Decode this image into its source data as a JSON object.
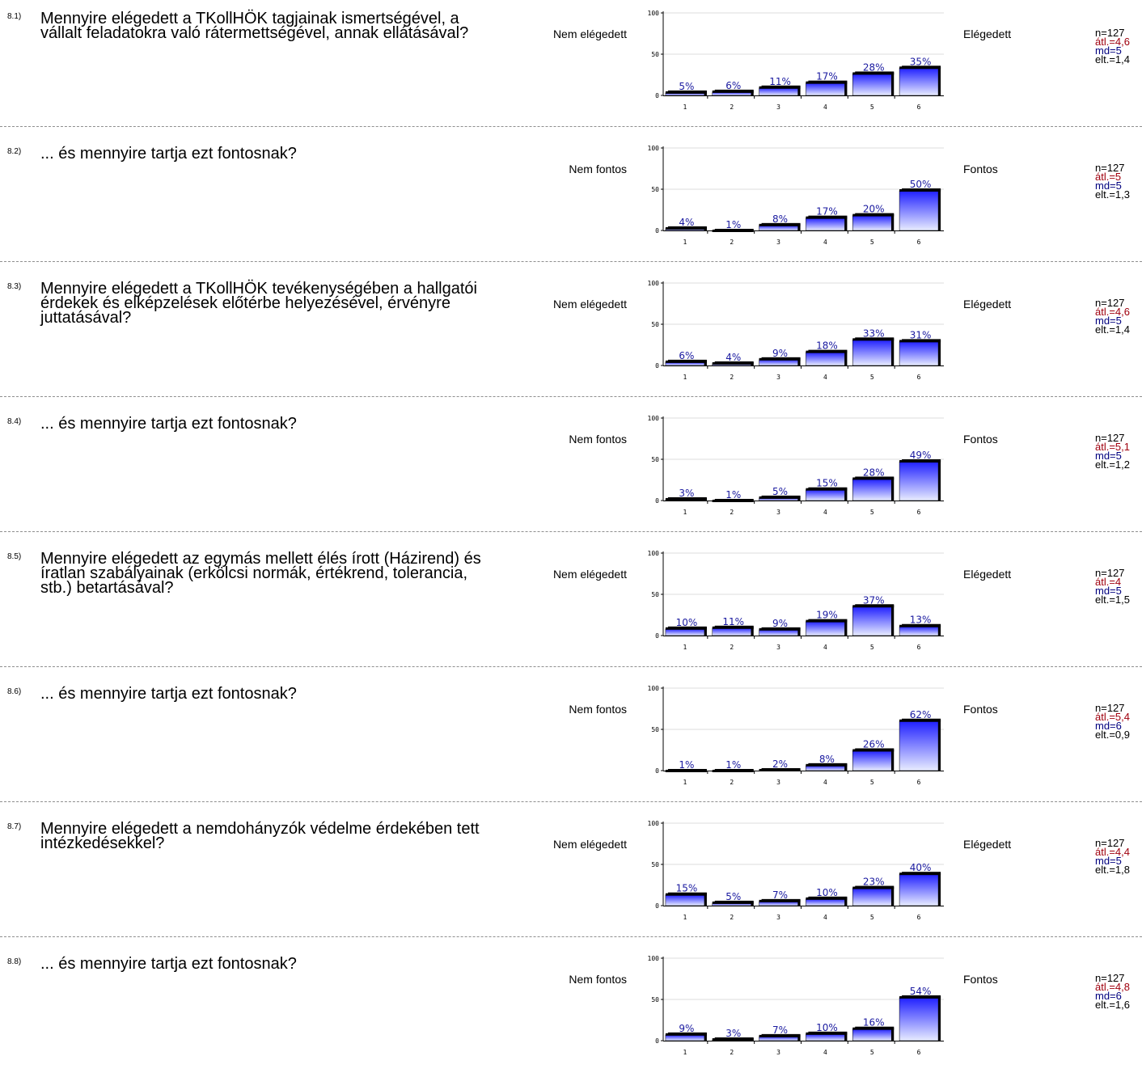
{
  "colors": {
    "bar_top": "#2020ff",
    "bar_bottom": "#e8ecff",
    "label": "#1a1aa0",
    "avg": "#a0000e",
    "md": "#00007f"
  },
  "chart_data": [
    {
      "type": "bar",
      "id": "8.1)",
      "question": "Mennyire elégedett a TKollHÖK tagjainak ismertségével, a vállalt feladatokra való rátermettségével, annak ellátásával?",
      "left_label": "Nem elégedett",
      "right_label": "Elégedett",
      "categories": [
        "1",
        "2",
        "3",
        "4",
        "5",
        "6"
      ],
      "values": [
        5,
        6,
        11,
        17,
        28,
        35
      ],
      "labels": [
        "5%",
        "6%",
        "11%",
        "17%",
        "28%",
        "35%"
      ],
      "yticks": [
        "0",
        "50",
        "100"
      ],
      "ylim": [
        0,
        100
      ],
      "stats": {
        "n": "n=127",
        "avg": "átl.=4,6",
        "md": "md=5",
        "elt": "elt.=1,4"
      }
    },
    {
      "type": "bar",
      "id": "8.2)",
      "question": "... és mennyire tartja ezt fontosnak?",
      "left_label": "Nem fontos",
      "right_label": "Fontos",
      "categories": [
        "1",
        "2",
        "3",
        "4",
        "5",
        "6"
      ],
      "values": [
        4,
        1,
        8,
        17,
        20,
        50
      ],
      "labels": [
        "4%",
        "1%",
        "8%",
        "17%",
        "20%",
        "50%"
      ],
      "yticks": [
        "0",
        "50",
        "100"
      ],
      "ylim": [
        0,
        100
      ],
      "stats": {
        "n": "n=127",
        "avg": "átl.=5",
        "md": "md=5",
        "elt": "elt.=1,3"
      }
    },
    {
      "type": "bar",
      "id": "8.3)",
      "question": "Mennyire elégedett a TKollHÖK tevékenységében a hallgatói érdekek és elképzelések előtérbe helyezésével, érvényre juttatásával?",
      "left_label": "Nem elégedett",
      "right_label": "Elégedett",
      "categories": [
        "1",
        "2",
        "3",
        "4",
        "5",
        "6"
      ],
      "values": [
        6,
        4,
        9,
        18,
        33,
        31
      ],
      "labels": [
        "6%",
        "4%",
        "9%",
        "18%",
        "33%",
        "31%"
      ],
      "yticks": [
        "0",
        "50",
        "100"
      ],
      "ylim": [
        0,
        100
      ],
      "stats": {
        "n": "n=127",
        "avg": "átl.=4,6",
        "md": "md=5",
        "elt": "elt.=1,4"
      }
    },
    {
      "type": "bar",
      "id": "8.4)",
      "question": "... és mennyire tartja ezt fontosnak?",
      "left_label": "Nem fontos",
      "right_label": "Fontos",
      "categories": [
        "1",
        "2",
        "3",
        "4",
        "5",
        "6"
      ],
      "values": [
        3,
        1,
        5,
        15,
        28,
        49
      ],
      "labels": [
        "3%",
        "1%",
        "5%",
        "15%",
        "28%",
        "49%"
      ],
      "yticks": [
        "0",
        "50",
        "100"
      ],
      "ylim": [
        0,
        100
      ],
      "stats": {
        "n": "n=127",
        "avg": "átl.=5,1",
        "md": "md=5",
        "elt": "elt.=1,2"
      }
    },
    {
      "type": "bar",
      "id": "8.5)",
      "question": "Mennyire elégedett az egymás mellett élés írott (Házirend) és íratlan szabályainak (erkölcsi normák, értékrend, tolerancia, stb.) betartásával?",
      "left_label": "Nem elégedett",
      "right_label": "Elégedett",
      "categories": [
        "1",
        "2",
        "3",
        "4",
        "5",
        "6"
      ],
      "values": [
        10,
        11,
        9,
        19,
        37,
        13
      ],
      "labels": [
        "10%",
        "11%",
        "9%",
        "19%",
        "37%",
        "13%"
      ],
      "yticks": [
        "0",
        "50",
        "100"
      ],
      "ylim": [
        0,
        100
      ],
      "stats": {
        "n": "n=127",
        "avg": "átl.=4",
        "md": "md=5",
        "elt": "elt.=1,5"
      }
    },
    {
      "type": "bar",
      "id": "8.6)",
      "question": "... és mennyire tartja ezt fontosnak?",
      "left_label": "Nem fontos",
      "right_label": "Fontos",
      "categories": [
        "1",
        "2",
        "3",
        "4",
        "5",
        "6"
      ],
      "values": [
        1,
        1,
        2,
        8,
        26,
        62
      ],
      "labels": [
        "1%",
        "1%",
        "2%",
        "8%",
        "26%",
        "62%"
      ],
      "yticks": [
        "0",
        "50",
        "100"
      ],
      "ylim": [
        0,
        100
      ],
      "stats": {
        "n": "n=127",
        "avg": "átl.=5,4",
        "md": "md=6",
        "elt": "elt.=0,9"
      }
    },
    {
      "type": "bar",
      "id": "8.7)",
      "question": "Mennyire elégedett a nemdohányzók védelme érdekében tett intézkedésekkel?",
      "left_label": "Nem elégedett",
      "right_label": "Elégedett",
      "categories": [
        "1",
        "2",
        "3",
        "4",
        "5",
        "6"
      ],
      "values": [
        15,
        5,
        7,
        10,
        23,
        40
      ],
      "labels": [
        "15%",
        "5%",
        "7%",
        "10%",
        "23%",
        "40%"
      ],
      "yticks": [
        "0",
        "50",
        "100"
      ],
      "ylim": [
        0,
        100
      ],
      "stats": {
        "n": "n=127",
        "avg": "átl.=4,4",
        "md": "md=5",
        "elt": "elt.=1,8"
      }
    },
    {
      "type": "bar",
      "id": "8.8)",
      "question": "... és mennyire tartja ezt fontosnak?",
      "left_label": "Nem fontos",
      "right_label": "Fontos",
      "categories": [
        "1",
        "2",
        "3",
        "4",
        "5",
        "6"
      ],
      "values": [
        9,
        3,
        7,
        10,
        16,
        54
      ],
      "labels": [
        "9%",
        "3%",
        "7%",
        "10%",
        "16%",
        "54%"
      ],
      "yticks": [
        "0",
        "50",
        "100"
      ],
      "ylim": [
        0,
        100
      ],
      "stats": {
        "n": "n=127",
        "avg": "átl.=4,8",
        "md": "md=6",
        "elt": "elt.=1,6"
      }
    }
  ]
}
